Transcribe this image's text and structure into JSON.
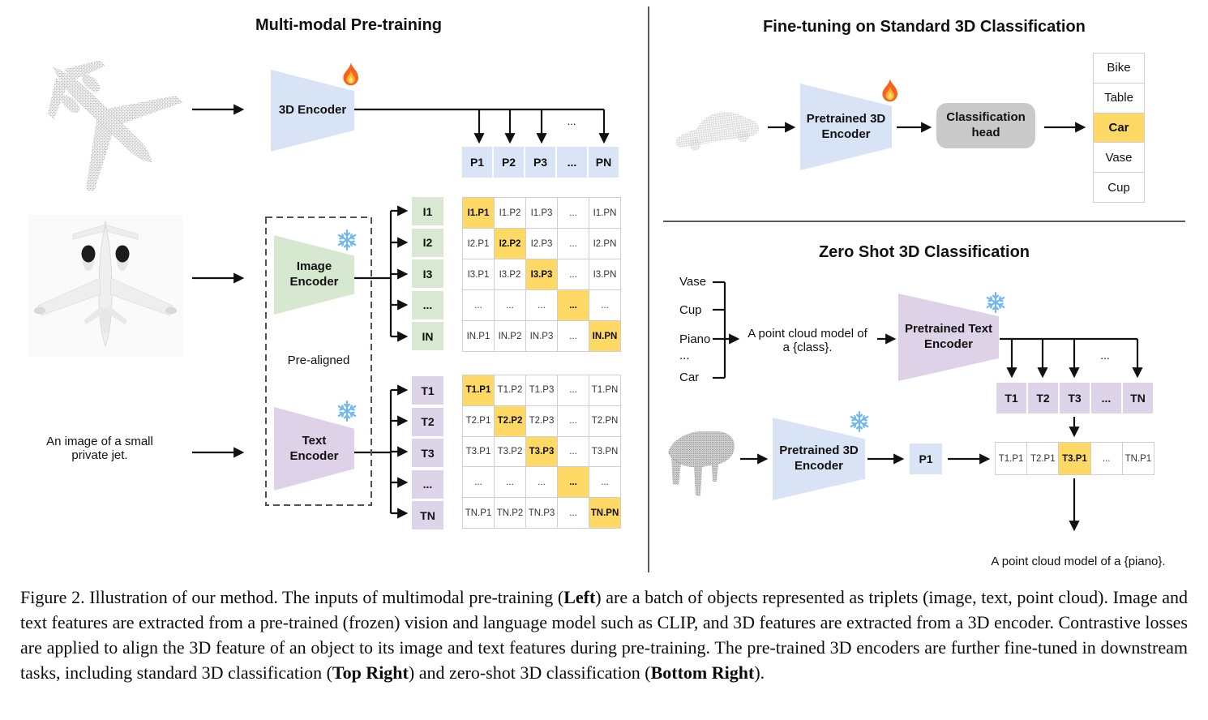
{
  "pretraining": {
    "title": "Multi-modal Pre-training",
    "input_image_caption": "An image of a small\nprivate jet.",
    "encoder_3d": "3D Encoder",
    "image_encoder": "Image\nEncoder",
    "text_encoder": "Text\nEncoder",
    "prealigned": "Pre-aligned",
    "ellipsis": "...",
    "p_row": [
      "P1",
      "P2",
      "P3",
      "...",
      "PN"
    ],
    "i_col": [
      "I1",
      "I2",
      "I3",
      "...",
      "IN"
    ],
    "t_col": [
      "T1",
      "T2",
      "T3",
      "...",
      "TN"
    ],
    "i_matrix": [
      [
        "I1.P1",
        "I1.P2",
        "I1.P3",
        "...",
        "I1.PN"
      ],
      [
        "I2.P1",
        "I2.P2",
        "I2.P3",
        "...",
        "I2.PN"
      ],
      [
        "I3.P1",
        "I3.P2",
        "I3.P3",
        "...",
        "I3.PN"
      ],
      [
        "...",
        "...",
        "...",
        "...",
        "..."
      ],
      [
        "IN.P1",
        "IN.P2",
        "IN.P3",
        "...",
        "IN.PN"
      ]
    ],
    "t_matrix": [
      [
        "T1.P1",
        "T1.P2",
        "T1.P3",
        "...",
        "T1.PN"
      ],
      [
        "T2.P1",
        "T2.P2",
        "T2.P3",
        "...",
        "T2.PN"
      ],
      [
        "T3.P1",
        "T3.P2",
        "T3.P3",
        "...",
        "T3.PN"
      ],
      [
        "...",
        "...",
        "...",
        "...",
        "..."
      ],
      [
        "TN.P1",
        "TN.P2",
        "TN.P3",
        "...",
        "TN.PN"
      ]
    ]
  },
  "fine_tuning": {
    "title": "Fine-tuning on Standard 3D Classification",
    "pretrained_3d_encoder": "Pretrained 3D\nEncoder",
    "classification_head": "Classification\nhead",
    "classes": [
      "Bike",
      "Table",
      "Car",
      "Vase",
      "Cup"
    ],
    "predicted_index": 2,
    "predicted_class": "Car"
  },
  "zero_shot": {
    "title": "Zero Shot 3D Classification",
    "class_candidates": [
      "Vase",
      "Cup",
      "Piano",
      "...",
      "Car"
    ],
    "prompt": "A point cloud model of\na {class}.",
    "pretrained_text_encoder": "Pretrained Text\nEncoder",
    "pretrained_3d_encoder": "Pretrained 3D\nEncoder",
    "p1": "P1",
    "t_row": [
      "T1",
      "T2",
      "T3",
      "...",
      "TN"
    ],
    "result_row": [
      "T1.P1",
      "T2.P1",
      "T3.P1",
      "...",
      "TN.P1"
    ],
    "matched_index": 2,
    "matched": "T3.P1",
    "ellipsis": "...",
    "result": "A point cloud model of a {piano}."
  },
  "icons": {
    "trainable": "fire",
    "frozen": "snowflake"
  },
  "colors": {
    "blue": "#d8e4f6",
    "green": "#d7e8d0",
    "purple": "#ddd2e7",
    "orange": "#ffd966",
    "head_gray": "#c9c9c9"
  },
  "caption": {
    "runs": [
      {
        "t": "Figure 2. Illustration of our method. The inputs of multimodal pre-training (",
        "b": 0
      },
      {
        "t": "Left",
        "b": 1
      },
      {
        "t": ") are a batch of objects represented as triplets (image, text, point cloud). Image and text features are extracted from a pre-trained (frozen) vision and language model such as CLIP, and 3D features are extracted from a 3D encoder. Contrastive losses are applied to align the 3D feature of an object to its image and text features during pre-training. The pre-trained 3D encoders are further fine-tuned in downstream tasks, including standard 3D classification (",
        "b": 0
      },
      {
        "t": "Top Right",
        "b": 1
      },
      {
        "t": ") and zero-shot 3D classification (",
        "b": 0
      },
      {
        "t": "Bottom Right",
        "b": 1
      },
      {
        "t": ").",
        "b": 0
      }
    ]
  }
}
